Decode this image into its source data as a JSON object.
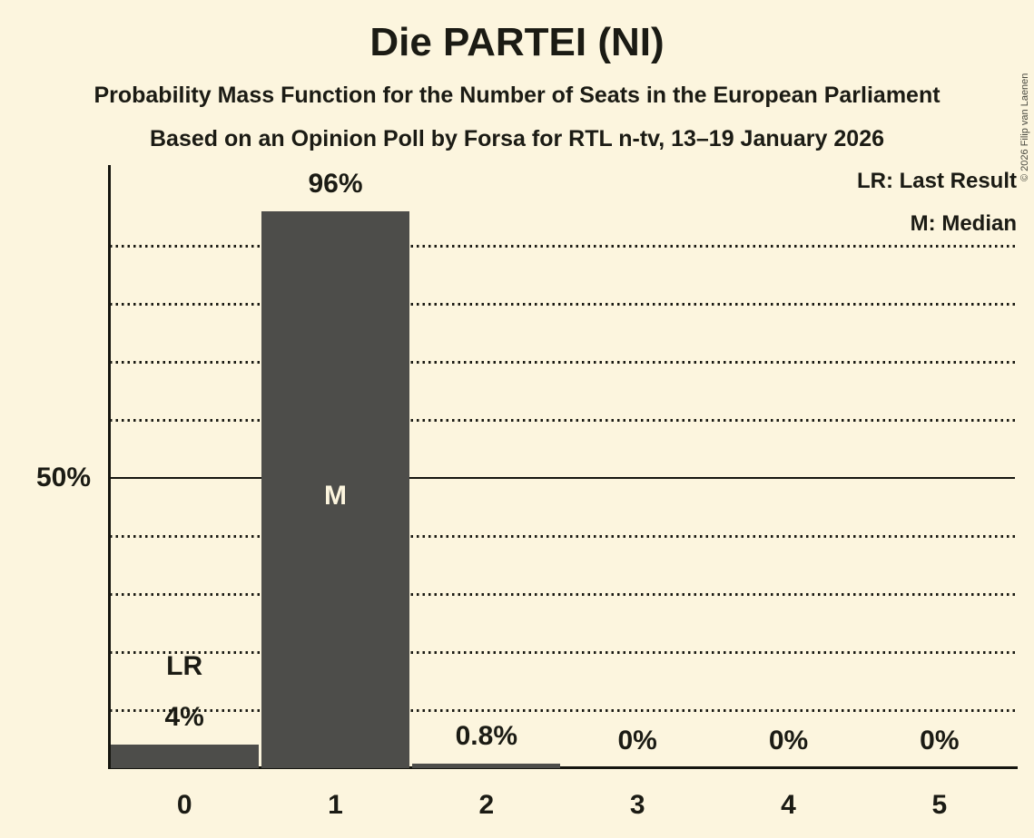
{
  "header": {
    "title": "Die PARTEI (NI)",
    "subtitle": "Probability Mass Function for the Number of Seats in the European Parliament",
    "source": "Based on an Opinion Poll by Forsa for RTL n-tv, 13–19 January 2026"
  },
  "legend": {
    "lr": "LR: Last Result",
    "m": "M: Median",
    "position": "top-right"
  },
  "copyright": "© 2026 Filip van Laenen",
  "colors": {
    "background": "#FCF5DE",
    "bar": "#4D4D4A",
    "text": "#1B1B14",
    "inner_label": "#FCF5DE"
  },
  "chart_data": {
    "type": "bar",
    "title": "Die PARTEI (NI)",
    "categories": [
      "0",
      "1",
      "2",
      "3",
      "4",
      "5"
    ],
    "values": [
      4,
      96,
      0.8,
      0,
      0,
      0
    ],
    "bar_labels": [
      "4%",
      "96%",
      "0.8%",
      "0%",
      "0%",
      "0%"
    ],
    "annotations": [
      {
        "category_index": 0,
        "text": "LR",
        "placement": "above",
        "meaning": "Last Result"
      },
      {
        "category_index": 1,
        "text": "M",
        "placement": "inside",
        "meaning": "Median"
      }
    ],
    "ylim": [
      0,
      100
    ],
    "ytick": {
      "value": 50,
      "label": "50%"
    },
    "gridlines_pct": [
      10,
      20,
      30,
      40,
      50,
      60,
      70,
      80,
      90
    ],
    "grid_style": "dotted, 50% line solid",
    "xlabel": "",
    "ylabel": ""
  }
}
